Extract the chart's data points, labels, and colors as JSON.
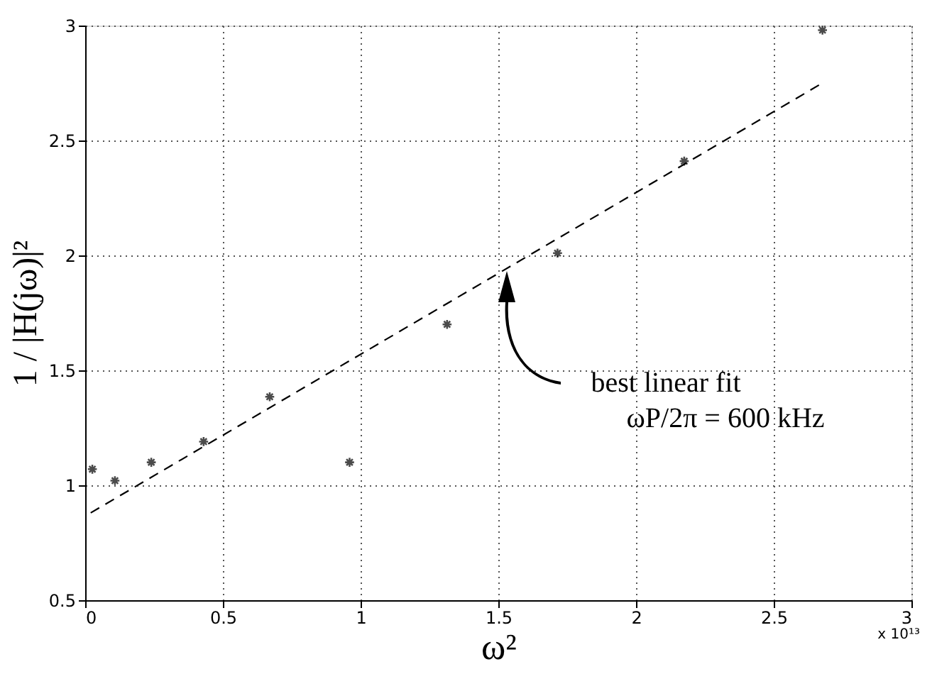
{
  "chart_data": {
    "type": "scatter",
    "xlabel": "ω²",
    "ylabel": "1 / |H(jω)|²",
    "xlim": [
      0,
      3
    ],
    "xticks": [
      0,
      0.5,
      1,
      1.5,
      2,
      2.5,
      3
    ],
    "ylim": [
      0.5,
      3
    ],
    "yticks": [
      0.5,
      1,
      1.5,
      2,
      2.5,
      3
    ],
    "grid": true,
    "series": [
      {
        "marker": "cross",
        "color": "#000000",
        "x": [
          0.026,
          0.108,
          0.24,
          0.43,
          0.67,
          0.96,
          1.314,
          1.715,
          2.175,
          2.677
        ],
        "values": [
          1.07,
          1.02,
          1.1,
          1.19,
          1.385,
          1.1,
          1.7,
          2.01,
          2.41,
          2.98
        ]
      },
      {
        "type": "line",
        "line_style": "dashed",
        "color": "#000000",
        "x": [
          0.02,
          2.677
        ],
        "values": [
          0.88,
          2.75
        ]
      }
    ],
    "annotations": [
      "best linear fit",
      "ωP/2π = 600 kHz",
      "x 10¹³"
    ]
  }
}
